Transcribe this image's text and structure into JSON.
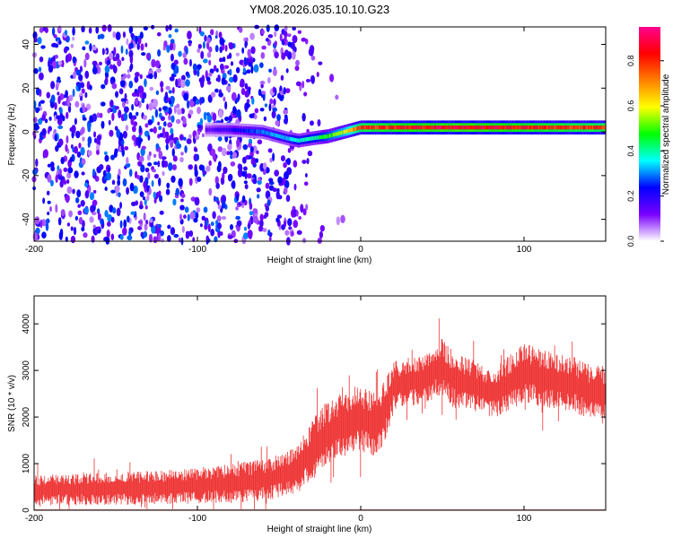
{
  "title": "YM08.2026.035.10.10.G23",
  "chart_data": [
    {
      "type": "heatmap",
      "name": "spectrogram",
      "xlabel": "Height of straight line (km)",
      "ylabel": "Frequency (Hz)",
      "xlim": [
        -200,
        150
      ],
      "ylim": [
        -50,
        48
      ],
      "xticks": [
        "-200",
        "-100",
        "0",
        "100"
      ],
      "xtick_values": [
        -200,
        -100,
        0,
        100
      ],
      "yticks": [
        "40",
        "20",
        "0",
        "-20",
        "-40"
      ],
      "ytick_values": [
        40,
        20,
        0,
        -20,
        -40
      ],
      "colorbar": {
        "label": "Normalized spectral amplitude",
        "range": [
          0,
          0.95
        ],
        "ticks": [
          "0.0",
          "0.2",
          "0.4",
          "0.6",
          "0.8"
        ],
        "tick_values": [
          0.0,
          0.2,
          0.4,
          0.6,
          0.8
        ],
        "colors": [
          "#ffffff",
          "#7a00ff",
          "#0000ff",
          "#00ffff",
          "#00ff00",
          "#ffff00",
          "#ff8000",
          "#ff0000",
          "#ff0090"
        ]
      },
      "signal_trace": {
        "x": [
          -95,
          -80,
          -60,
          -45,
          -38,
          -30,
          -20,
          -10,
          0,
          20,
          60,
          100,
          150
        ],
        "frequency": [
          1,
          1,
          0,
          -3,
          -4,
          -3,
          -2,
          0,
          2,
          2,
          2,
          2,
          2
        ],
        "amplitude": [
          0.15,
          0.2,
          0.3,
          0.35,
          0.4,
          0.4,
          0.5,
          0.6,
          0.8,
          0.85,
          0.9,
          0.85,
          0.8
        ]
      },
      "noise_region": {
        "x_range": [
          -200,
          -35
        ],
        "amplitude_range": [
          0.05,
          0.3
        ]
      }
    },
    {
      "type": "line",
      "name": "snr",
      "xlabel": "Height of straight line (km)",
      "ylabel": "SNR (10 * v/v)",
      "xlim": [
        -200,
        150
      ],
      "ylim": [
        0,
        4600
      ],
      "xticks": [
        "-200",
        "-100",
        "0",
        "100"
      ],
      "xtick_values": [
        -200,
        -100,
        0,
        100
      ],
      "yticks": [
        "0",
        "1000",
        "2000",
        "3000",
        "4000"
      ],
      "ytick_values": [
        0,
        1000,
        2000,
        3000,
        4000
      ],
      "series": [
        {
          "name": "SNR",
          "color": "#ee3333",
          "x": [
            -200,
            -180,
            -160,
            -140,
            -120,
            -100,
            -80,
            -60,
            -45,
            -40,
            -35,
            -30,
            -25,
            -20,
            -15,
            -10,
            -5,
            0,
            5,
            10,
            15,
            20,
            30,
            40,
            45,
            50,
            55,
            60,
            70,
            80,
            90,
            100,
            110,
            120,
            130,
            140,
            150
          ],
          "mean": [
            450,
            470,
            480,
            500,
            520,
            560,
            600,
            680,
            800,
            900,
            1100,
            1300,
            1550,
            1700,
            1800,
            1900,
            2000,
            2000,
            1950,
            1900,
            2200,
            2700,
            2800,
            2850,
            3050,
            3100,
            2900,
            2800,
            2700,
            2550,
            2750,
            3000,
            2900,
            2800,
            2750,
            2600,
            2550
          ],
          "spread": [
            250,
            260,
            270,
            280,
            280,
            300,
            320,
            350,
            380,
            400,
            450,
            500,
            550,
            550,
            550,
            550,
            550,
            550,
            550,
            550,
            500,
            450,
            400,
            420,
            450,
            500,
            480,
            450,
            430,
            430,
            450,
            500,
            480,
            460,
            460,
            450,
            450
          ]
        }
      ]
    }
  ]
}
